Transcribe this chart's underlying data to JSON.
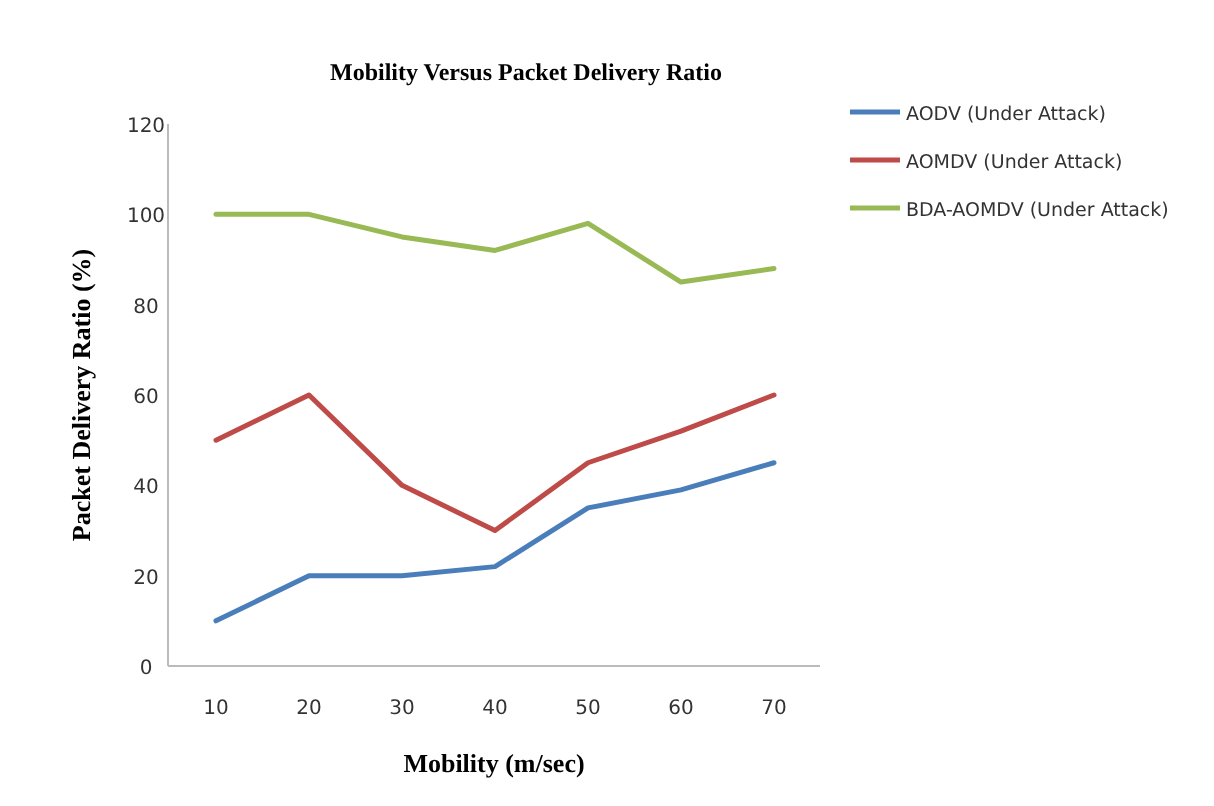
{
  "chart_data": {
    "type": "line",
    "title": "Mobility Versus Packet Delivery Ratio",
    "xlabel": "Mobility (m/sec)",
    "ylabel": "Packet Delivery Ratio (%)",
    "categories": [
      "10",
      "20",
      "30",
      "40",
      "50",
      "60",
      "70"
    ],
    "series": [
      {
        "name": "AODV (Under Attack)",
        "color": "#4a7ebb",
        "values": [
          10,
          20,
          20,
          22,
          35,
          39,
          45
        ]
      },
      {
        "name": "AOMDV (Under Attack)",
        "color": "#be4b48",
        "values": [
          50,
          60,
          40,
          30,
          45,
          52,
          60
        ]
      },
      {
        "name": "BDA-AOMDV (Under Attack)",
        "color": "#98b954",
        "values": [
          100,
          100,
          95,
          92,
          98,
          85,
          88
        ]
      }
    ],
    "ylim": [
      0,
      120
    ],
    "yticks": [
      0,
      20,
      40,
      60,
      80,
      100,
      120
    ],
    "grid": false,
    "legend": "top right",
    "marker": "none",
    "line_style": "solid"
  }
}
